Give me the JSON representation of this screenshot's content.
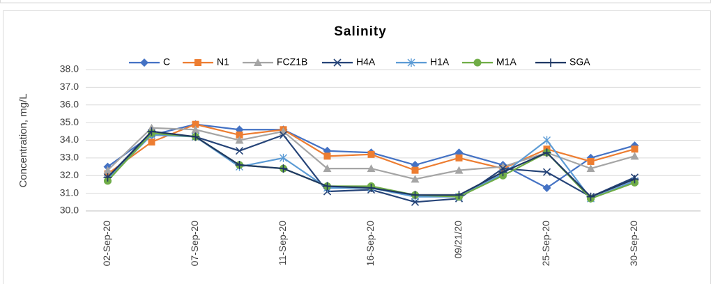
{
  "chart_data": {
    "type": "line",
    "title": "Salinity",
    "y_label": "Concentration, mg/L",
    "categories": [
      "02-Sep-20",
      null,
      "07-Sep-20",
      null,
      "11-Sep-20",
      null,
      "16-Sep-20",
      null,
      "09/21/20",
      null,
      "25-Sep-20",
      null,
      "30-Sep-20",
      null
    ],
    "ylim": [
      30,
      38
    ],
    "yticks": [
      {
        "value": 30,
        "label": "30.0"
      },
      {
        "value": 31,
        "label": "31.0"
      },
      {
        "value": 32,
        "label": "32.0"
      },
      {
        "value": 33,
        "label": "33.0"
      },
      {
        "value": 34,
        "label": "34.0"
      },
      {
        "value": 35,
        "label": "35.0"
      },
      {
        "value": 36,
        "label": "36.0"
      },
      {
        "value": 37,
        "label": "37.0"
      },
      {
        "value": 38,
        "label": "38.0"
      }
    ],
    "grid": true,
    "legend": "top",
    "series": [
      {
        "name": "C",
        "color": "#4472c4",
        "marker": "diamond",
        "values": [
          32.5,
          34.3,
          34.9,
          34.6,
          34.6,
          33.4,
          33.3,
          32.6,
          33.3,
          32.6,
          31.3,
          33.0,
          33.7,
          null
        ]
      },
      {
        "name": "N1",
        "color": "#ed7d31",
        "marker": "square",
        "values": [
          32.1,
          33.9,
          34.9,
          34.3,
          34.6,
          33.1,
          33.2,
          32.3,
          33.0,
          32.4,
          33.5,
          32.8,
          33.5,
          null
        ]
      },
      {
        "name": "FCZ1B",
        "color": "#a5a5a5",
        "marker": "triangle",
        "values": [
          32.3,
          34.7,
          34.6,
          34.0,
          34.5,
          32.4,
          32.4,
          31.8,
          32.3,
          32.5,
          33.3,
          32.4,
          33.1,
          null
        ]
      },
      {
        "name": "H4A",
        "color": "#264478",
        "marker": "x",
        "values": [
          31.9,
          34.4,
          34.2,
          33.4,
          34.3,
          31.1,
          31.2,
          30.5,
          30.7,
          32.4,
          32.2,
          30.8,
          31.9,
          null
        ]
      },
      {
        "name": "H1A",
        "color": "#5b9bd5",
        "marker": "star",
        "values": [
          31.8,
          34.3,
          34.2,
          32.5,
          33.0,
          31.3,
          31.3,
          30.8,
          30.8,
          32.1,
          34.0,
          30.7,
          31.7,
          null
        ]
      },
      {
        "name": "M1A",
        "color": "#70ad47",
        "marker": "circle",
        "values": [
          31.7,
          34.4,
          34.2,
          32.6,
          32.4,
          31.4,
          31.4,
          30.9,
          30.8,
          32.0,
          33.3,
          30.7,
          31.6,
          null
        ]
      },
      {
        "name": "SGA",
        "color": "#1f3864",
        "marker": "plus",
        "values": [
          31.9,
          34.5,
          34.2,
          32.6,
          32.4,
          31.4,
          31.3,
          30.9,
          30.9,
          32.2,
          33.3,
          30.8,
          31.8,
          null
        ]
      }
    ]
  }
}
